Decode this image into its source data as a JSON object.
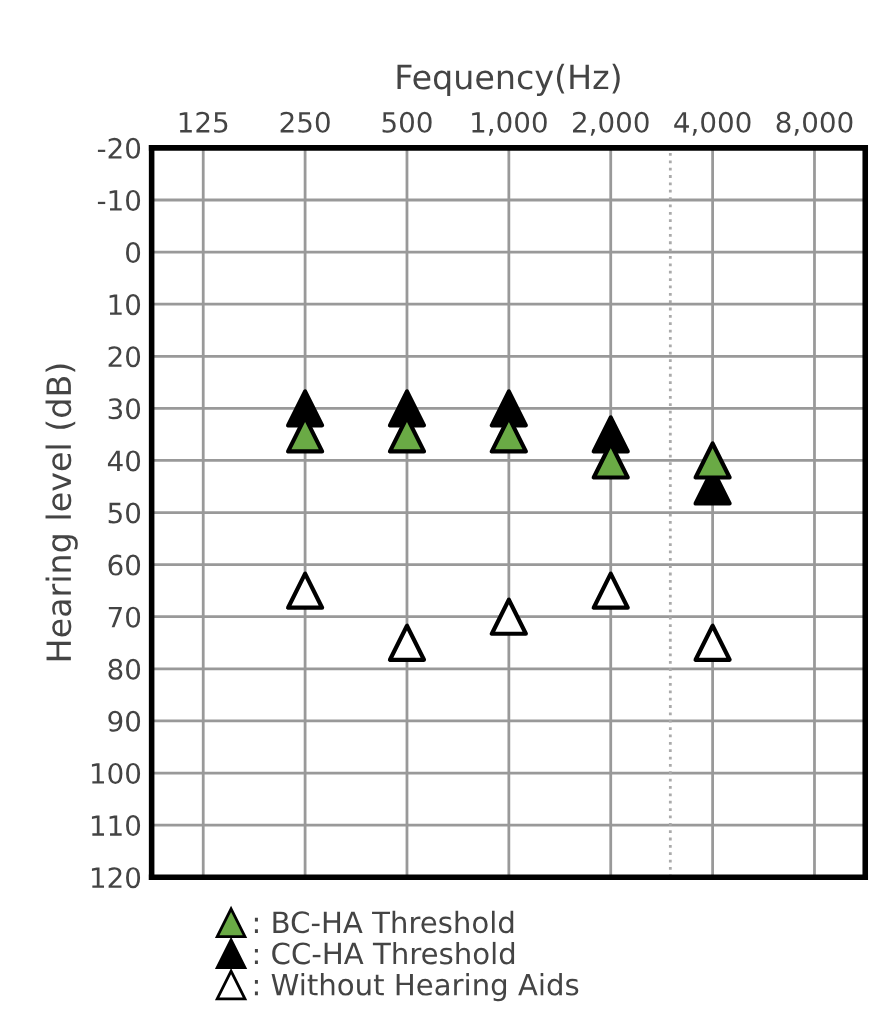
{
  "chart_data": {
    "type": "scatter",
    "xlabel": "Fequency(Hz)",
    "ylabel": "Hearing level (dB)",
    "log": "x",
    "xlim": [
      88,
      11300
    ],
    "xticks": [
      125,
      250,
      500,
      {
        "value": 1000,
        "label": "1,000"
      },
      {
        "value": 2000,
        "label": "2,000"
      },
      {
        "value": 4000,
        "label": "4,000"
      },
      {
        "value": 8000,
        "label": "8,000"
      }
    ],
    "ylim": [
      120,
      -20
    ],
    "yticks": [
      -20,
      -10,
      0,
      10,
      20,
      30,
      40,
      50,
      60,
      70,
      80,
      90,
      100,
      110,
      120
    ],
    "grid": true,
    "legend": "bottom",
    "marker": "triangle",
    "ref_lines": [
      {
        "axis": "x",
        "value": 3000,
        "color": "#aaaaaa",
        "line_style": "dotted"
      }
    ],
    "series": [
      {
        "name": ": CC-HA Threshold",
        "color": "#000000",
        "x": [
          250,
          500,
          1000,
          2000,
          4000
        ],
        "values": [
          30,
          30,
          30,
          35,
          45
        ]
      },
      {
        "name": ": BC-HA Threshold",
        "color": "#6aaa45",
        "x": [
          250,
          500,
          1000,
          2000,
          4000
        ],
        "values": [
          35,
          35,
          35,
          40,
          40
        ]
      },
      {
        "name": ": Without Hearing Aids",
        "color": "#ffffff",
        "x": [
          250,
          500,
          1000,
          2000,
          4000
        ],
        "values": [
          65,
          75,
          70,
          65,
          75
        ]
      }
    ]
  }
}
